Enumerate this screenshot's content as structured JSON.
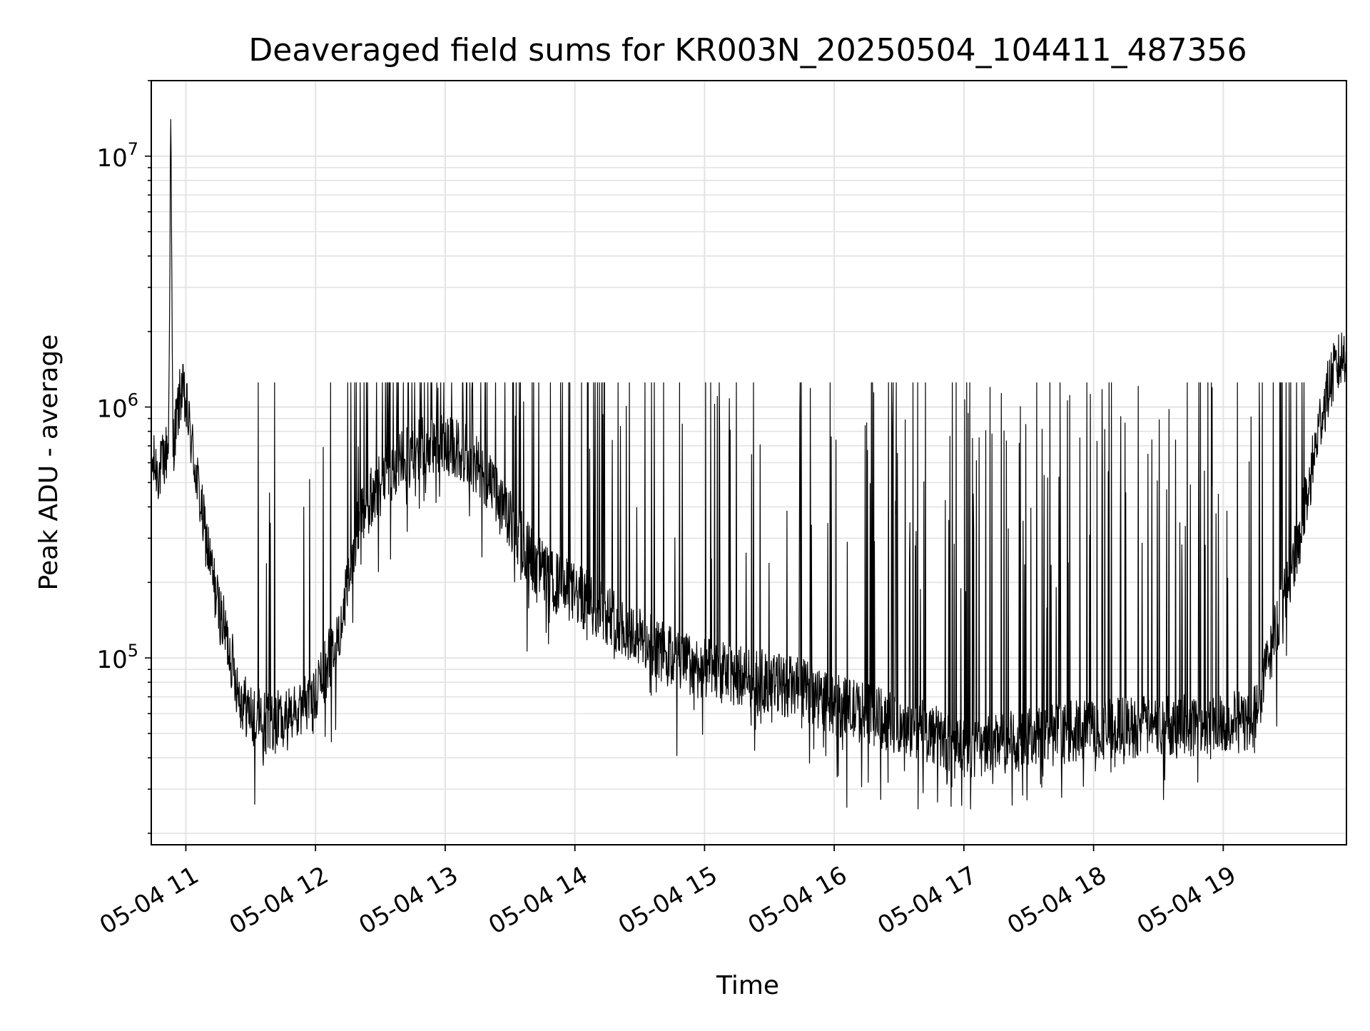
{
  "chart_data": {
    "type": "line",
    "title": "Deaveraged field sums for KR003N_20250504_104411_487356",
    "xlabel": "Time",
    "ylabel": "Peak ADU - average",
    "yscale": "log",
    "ylim": [
      18000,
      20000000
    ],
    "xlim": [
      "05-04 10:44",
      "05-04 19:57"
    ],
    "grid": true,
    "legend": "none",
    "line_color": "#000000",
    "x_ticks": [
      "05-04 11",
      "05-04 12",
      "05-04 13",
      "05-04 14",
      "05-04 15",
      "05-04 16",
      "05-04 17",
      "05-04 18",
      "05-04 19"
    ],
    "y_ticks": [
      {
        "base": "10",
        "exp": "5",
        "value": 100000
      },
      {
        "base": "10",
        "exp": "6",
        "value": 1000000
      },
      {
        "base": "10",
        "exp": "7",
        "value": 10000000
      }
    ],
    "series": [
      {
        "x": [
          "05-04 10:44",
          "05-04 10:48",
          "05-04 10:52",
          "05-04 10:53",
          "05-04 10:54",
          "05-04 10:58",
          "05-04 11:01",
          "05-04 11:04",
          "05-04 11:08",
          "05-04 11:12",
          "05-04 11:15",
          "05-04 11:20",
          "05-04 11:25",
          "05-04 11:30",
          "05-04 11:40",
          "05-04 11:50",
          "05-04 12:00",
          "05-04 12:10",
          "05-04 12:15",
          "05-04 12:20",
          "05-04 12:30",
          "05-04 12:40",
          "05-04 12:45",
          "05-04 12:50",
          "05-04 13:00",
          "05-04 13:10",
          "05-04 13:20",
          "05-04 13:30",
          "05-04 13:40",
          "05-04 13:50",
          "05-04 14:00",
          "05-04 14:15",
          "05-04 14:30",
          "05-04 14:45",
          "05-04 15:00",
          "05-04 15:15",
          "05-04 15:30",
          "05-04 15:45",
          "05-04 16:00",
          "05-04 16:15",
          "05-04 16:30",
          "05-04 16:45",
          "05-04 17:00",
          "05-04 17:15",
          "05-04 17:30",
          "05-04 17:45",
          "05-04 18:00",
          "05-04 18:15",
          "05-04 18:30",
          "05-04 18:45",
          "05-04 19:00",
          "05-04 19:10",
          "05-04 19:15",
          "05-04 19:20",
          "05-04 19:25",
          "05-04 19:30",
          "05-04 19:35",
          "05-04 19:40",
          "05-04 19:45",
          "05-04 19:50",
          "05-04 19:57"
        ],
        "y": [
          600000,
          550000,
          700000,
          14000000,
          700000,
          1200000,
          900000,
          600000,
          350000,
          220000,
          160000,
          110000,
          70000,
          60000,
          55000,
          58000,
          70000,
          120000,
          200000,
          350000,
          500000,
          600000,
          650000,
          700000,
          700000,
          650000,
          500000,
          350000,
          250000,
          200000,
          180000,
          150000,
          120000,
          100000,
          90000,
          85000,
          80000,
          75000,
          65000,
          60000,
          55000,
          50000,
          42000,
          45000,
          48000,
          50000,
          52000,
          53000,
          54000,
          55000,
          56000,
          55000,
          60000,
          90000,
          140000,
          200000,
          300000,
          500000,
          900000,
          1300000,
          1700000
        ]
      }
    ]
  }
}
